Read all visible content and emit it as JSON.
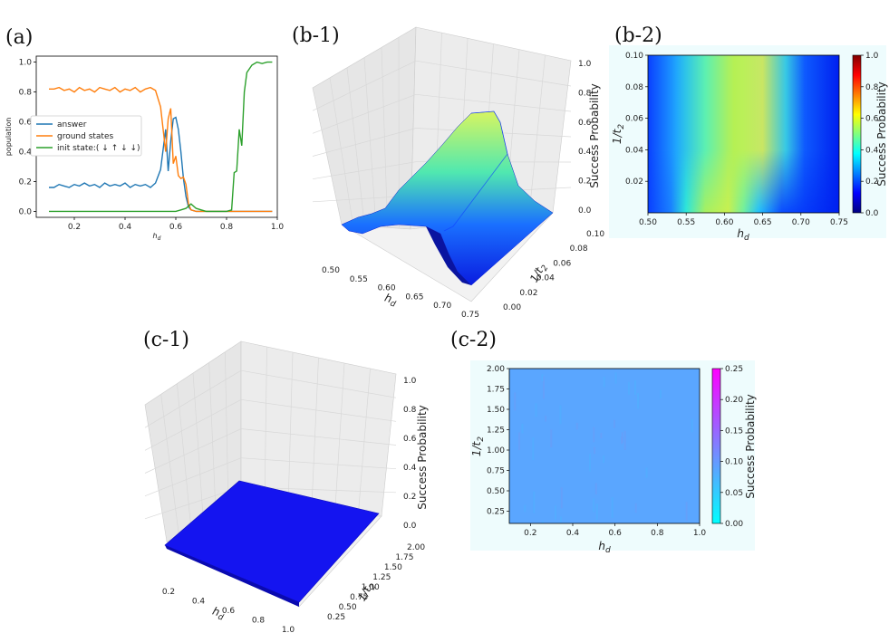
{
  "panels": {
    "a": "(a)",
    "b1": "(b-1)",
    "b2": "(b-2)",
    "c1": "(c-1)",
    "c2": "(c-2)"
  },
  "chart_data": [
    {
      "id": "a",
      "type": "line",
      "title": "",
      "xlabel": "h_d",
      "ylabel": "population",
      "xlim": [
        0.05,
        1.0
      ],
      "ylim": [
        -0.04,
        1.04
      ],
      "xticks": [
        "0.2",
        "0.4",
        "0.6",
        "0.8",
        "1.0"
      ],
      "yticks": [
        "0.0",
        "0.2",
        "0.4",
        "0.6",
        "0.8",
        "1.0"
      ],
      "legend_position": "center-left",
      "series": [
        {
          "name": "answer",
          "color": "#1f77b4",
          "x": [
            0.1,
            0.12,
            0.14,
            0.16,
            0.18,
            0.2,
            0.22,
            0.24,
            0.26,
            0.28,
            0.3,
            0.32,
            0.34,
            0.36,
            0.38,
            0.4,
            0.42,
            0.44,
            0.46,
            0.48,
            0.5,
            0.52,
            0.54,
            0.56,
            0.57,
            0.58,
            0.59,
            0.6,
            0.61,
            0.62,
            0.63,
            0.64,
            0.65,
            0.66,
            0.68,
            0.7,
            0.72,
            0.74,
            0.76,
            0.78,
            0.8,
            0.82,
            0.84,
            0.86,
            0.88,
            0.9,
            0.92,
            0.94,
            0.96,
            0.98
          ],
          "y": [
            0.16,
            0.16,
            0.18,
            0.17,
            0.16,
            0.18,
            0.17,
            0.19,
            0.17,
            0.18,
            0.16,
            0.19,
            0.17,
            0.18,
            0.17,
            0.19,
            0.16,
            0.18,
            0.17,
            0.18,
            0.16,
            0.19,
            0.28,
            0.55,
            0.27,
            0.47,
            0.62,
            0.63,
            0.55,
            0.4,
            0.22,
            0.1,
            0.03,
            0.01,
            0.0,
            0.0,
            0.0,
            0.0,
            0.0,
            0.0,
            0.0,
            0.0,
            0.0,
            0.0,
            0.0,
            0.0,
            0.0,
            0.0,
            0.0,
            0.0
          ]
        },
        {
          "name": "ground states",
          "color": "#ff7f0e",
          "x": [
            0.1,
            0.12,
            0.14,
            0.16,
            0.18,
            0.2,
            0.22,
            0.24,
            0.26,
            0.28,
            0.3,
            0.32,
            0.34,
            0.36,
            0.38,
            0.4,
            0.42,
            0.44,
            0.46,
            0.48,
            0.5,
            0.52,
            0.54,
            0.56,
            0.57,
            0.58,
            0.59,
            0.6,
            0.61,
            0.62,
            0.63,
            0.64,
            0.65,
            0.66,
            0.68,
            0.7,
            0.72,
            0.74,
            0.76,
            0.78,
            0.8,
            0.82,
            0.84,
            0.86,
            0.88,
            0.9,
            0.92,
            0.94,
            0.96,
            0.98
          ],
          "y": [
            0.82,
            0.82,
            0.83,
            0.81,
            0.82,
            0.8,
            0.83,
            0.81,
            0.82,
            0.8,
            0.83,
            0.82,
            0.81,
            0.83,
            0.8,
            0.82,
            0.81,
            0.83,
            0.8,
            0.82,
            0.83,
            0.81,
            0.7,
            0.4,
            0.62,
            0.69,
            0.32,
            0.37,
            0.24,
            0.22,
            0.23,
            0.18,
            0.05,
            0.01,
            0.0,
            0.0,
            0.0,
            0.0,
            0.0,
            0.0,
            0.0,
            0.0,
            0.0,
            0.0,
            0.0,
            0.0,
            0.0,
            0.0,
            0.0,
            0.0
          ]
        },
        {
          "name": "init state:( ↓ ↑ ↓ ↓)",
          "color": "#2ca02c",
          "x": [
            0.1,
            0.2,
            0.3,
            0.4,
            0.5,
            0.6,
            0.62,
            0.64,
            0.66,
            0.68,
            0.7,
            0.72,
            0.74,
            0.76,
            0.78,
            0.8,
            0.82,
            0.83,
            0.84,
            0.85,
            0.86,
            0.87,
            0.88,
            0.9,
            0.92,
            0.94,
            0.96,
            0.98
          ],
          "y": [
            0.0,
            0.0,
            0.0,
            0.0,
            0.0,
            0.0,
            0.01,
            0.02,
            0.05,
            0.02,
            0.01,
            0.0,
            0.0,
            0.0,
            0.0,
            0.0,
            0.01,
            0.26,
            0.27,
            0.55,
            0.44,
            0.8,
            0.93,
            0.98,
            1.0,
            0.99,
            1.0,
            1.0
          ]
        }
      ]
    },
    {
      "id": "b1",
      "type": "surface3d",
      "xlabel": "h_d",
      "ylabel": "1/t_2",
      "zlabel": "Success Probability",
      "xlim": [
        0.5,
        0.75
      ],
      "ylim": [
        0.0,
        0.1
      ],
      "zlim": [
        0.0,
        1.0
      ],
      "xticks": [
        "0.50",
        "0.55",
        "0.60",
        "0.65",
        "0.70",
        "0.75"
      ],
      "yticks": [
        "0.00",
        "0.02",
        "0.04",
        "0.06",
        "0.08",
        "0.10"
      ],
      "zticks": [
        "0.0",
        "0.2",
        "0.4",
        "0.6",
        "0.8",
        "1.0"
      ],
      "peak_h_d": 0.62,
      "peak_value": 0.6
    },
    {
      "id": "b2",
      "type": "heatmap",
      "xlabel": "h_d",
      "ylabel": "1/t_2",
      "colorbar_label": "Success Probability",
      "xlim": [
        0.5,
        0.75
      ],
      "ylim": [
        0.0,
        0.1
      ],
      "xticks": [
        "0.50",
        "0.55",
        "0.60",
        "0.65",
        "0.70",
        "0.75"
      ],
      "yticks": [
        "0.02",
        "0.04",
        "0.06",
        "0.08",
        "0.10"
      ],
      "colorbar_ticks": [
        "0.0",
        "0.2",
        "0.4",
        "0.6",
        "0.8",
        "1.0"
      ],
      "clim": [
        0.0,
        1.0
      ],
      "colormap": "jet"
    },
    {
      "id": "c1",
      "type": "surface3d",
      "xlabel": "h_d",
      "ylabel": "1/t_2",
      "zlabel": "Success Probability",
      "xlim": [
        0.1,
        1.0
      ],
      "ylim": [
        0.1,
        2.0
      ],
      "zlim": [
        0.0,
        1.0
      ],
      "xticks": [
        "0.2",
        "0.4",
        "0.6",
        "0.8",
        "1.0"
      ],
      "yticks": [
        "0.25",
        "0.50",
        "0.75",
        "1.00",
        "1.25",
        "1.50",
        "1.75",
        "2.00"
      ],
      "zticks": [
        "0.0",
        "0.2",
        "0.4",
        "0.6",
        "0.8",
        "1.0"
      ],
      "value": 0.06
    },
    {
      "id": "c2",
      "type": "heatmap",
      "xlabel": "h_d",
      "ylabel": "1/t_2",
      "colorbar_label": "Success Probability",
      "xlim": [
        0.1,
        1.0
      ],
      "ylim": [
        0.1,
        2.0
      ],
      "xticks": [
        "0.2",
        "0.4",
        "0.6",
        "0.8",
        "1.0"
      ],
      "yticks": [
        "0.25",
        "0.50",
        "0.75",
        "1.00",
        "1.25",
        "1.50",
        "1.75",
        "2.00"
      ],
      "colorbar_ticks": [
        "0.00",
        "0.05",
        "0.10",
        "0.15",
        "0.20",
        "0.25"
      ],
      "clim": [
        0.0,
        0.25
      ],
      "colormap": "cool",
      "value": 0.06
    }
  ]
}
